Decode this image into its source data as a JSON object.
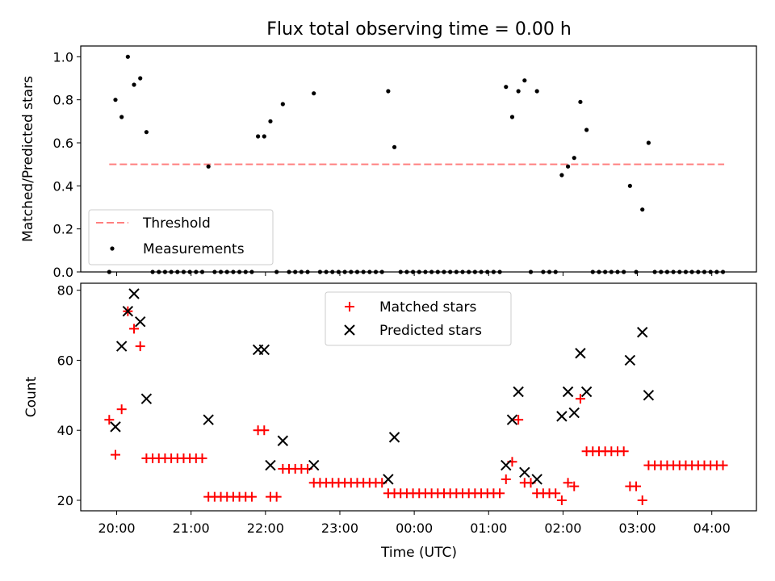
{
  "title": "Flux total observing time = 0.00 h",
  "colors": {
    "threshold": "#ff7f7f",
    "measurement": "#000000",
    "matched": "#ff0000",
    "predicted": "#000000"
  },
  "chart_data": [
    {
      "type": "scatter",
      "ylabel": "Matched/Predicted stars",
      "ylim": [
        0,
        1.05
      ],
      "xlim": [
        "19:31",
        "04:36"
      ],
      "yticks": [
        "0.0",
        "0.2",
        "0.4",
        "0.6",
        "0.8",
        "1.0"
      ],
      "grid": false,
      "legend": {
        "placement": "lower-left",
        "entries": [
          "Threshold",
          "Measurements"
        ]
      },
      "threshold": {
        "name": "Threshold",
        "y": 0.5,
        "x": [
          "19:54",
          "04:10"
        ]
      },
      "series": [
        {
          "name": "Measurements",
          "points": [
            [
              "19:54",
              0.0
            ],
            [
              "19:59",
              0.8
            ],
            [
              "20:04",
              0.72
            ],
            [
              "20:09",
              1.0
            ],
            [
              "20:14",
              0.87
            ],
            [
              "20:19",
              0.9
            ],
            [
              "20:24",
              0.65
            ],
            [
              "20:29",
              0.0
            ],
            [
              "20:34",
              0.0
            ],
            [
              "20:39",
              0.0
            ],
            [
              "20:44",
              0.0
            ],
            [
              "20:49",
              0.0
            ],
            [
              "20:54",
              0.0
            ],
            [
              "20:59",
              0.0
            ],
            [
              "21:04",
              0.0
            ],
            [
              "21:09",
              0.0
            ],
            [
              "21:14",
              0.49
            ],
            [
              "21:19",
              0.0
            ],
            [
              "21:24",
              0.0
            ],
            [
              "21:29",
              0.0
            ],
            [
              "21:34",
              0.0
            ],
            [
              "21:39",
              0.0
            ],
            [
              "21:44",
              0.0
            ],
            [
              "21:49",
              0.0
            ],
            [
              "21:54",
              0.63
            ],
            [
              "21:59",
              0.63
            ],
            [
              "22:04",
              0.7
            ],
            [
              "22:09",
              0.0
            ],
            [
              "22:14",
              0.78
            ],
            [
              "22:19",
              0.0
            ],
            [
              "22:24",
              0.0
            ],
            [
              "22:29",
              0.0
            ],
            [
              "22:34",
              0.0
            ],
            [
              "22:39",
              0.83
            ],
            [
              "22:44",
              0.0
            ],
            [
              "22:49",
              0.0
            ],
            [
              "22:54",
              0.0
            ],
            [
              "22:59",
              0.0
            ],
            [
              "23:04",
              0.0
            ],
            [
              "23:09",
              0.0
            ],
            [
              "23:14",
              0.0
            ],
            [
              "23:19",
              0.0
            ],
            [
              "23:24",
              0.0
            ],
            [
              "23:29",
              0.0
            ],
            [
              "23:34",
              0.0
            ],
            [
              "23:39",
              0.84
            ],
            [
              "23:44",
              0.58
            ],
            [
              "23:49",
              0.0
            ],
            [
              "23:54",
              0.0
            ],
            [
              "23:59",
              0.0
            ],
            [
              "00:04",
              0.0
            ],
            [
              "00:09",
              0.0
            ],
            [
              "00:14",
              0.0
            ],
            [
              "00:19",
              0.0
            ],
            [
              "00:24",
              0.0
            ],
            [
              "00:29",
              0.0
            ],
            [
              "00:34",
              0.0
            ],
            [
              "00:39",
              0.0
            ],
            [
              "00:44",
              0.0
            ],
            [
              "00:49",
              0.0
            ],
            [
              "00:54",
              0.0
            ],
            [
              "00:59",
              0.0
            ],
            [
              "01:04",
              0.0
            ],
            [
              "01:09",
              0.0
            ],
            [
              "01:14",
              0.86
            ],
            [
              "01:19",
              0.72
            ],
            [
              "01:24",
              0.84
            ],
            [
              "01:29",
              0.89
            ],
            [
              "01:34",
              0.0
            ],
            [
              "01:39",
              0.84
            ],
            [
              "01:44",
              0.0
            ],
            [
              "01:49",
              0.0
            ],
            [
              "01:54",
              0.0
            ],
            [
              "01:59",
              0.45
            ],
            [
              "02:04",
              0.49
            ],
            [
              "02:09",
              0.53
            ],
            [
              "02:14",
              0.79
            ],
            [
              "02:19",
              0.66
            ],
            [
              "02:24",
              0.0
            ],
            [
              "02:29",
              0.0
            ],
            [
              "02:34",
              0.0
            ],
            [
              "02:39",
              0.0
            ],
            [
              "02:44",
              0.0
            ],
            [
              "02:49",
              0.0
            ],
            [
              "02:54",
              0.4
            ],
            [
              "02:59",
              0.0
            ],
            [
              "03:04",
              0.29
            ],
            [
              "03:09",
              0.6
            ],
            [
              "03:14",
              0.0
            ],
            [
              "03:19",
              0.0
            ],
            [
              "03:24",
              0.0
            ],
            [
              "03:29",
              0.0
            ],
            [
              "03:34",
              0.0
            ],
            [
              "03:39",
              0.0
            ],
            [
              "03:44",
              0.0
            ],
            [
              "03:49",
              0.0
            ],
            [
              "03:54",
              0.0
            ],
            [
              "03:59",
              0.0
            ],
            [
              "04:04",
              0.0
            ],
            [
              "04:09",
              0.0
            ]
          ]
        }
      ]
    },
    {
      "type": "scatter",
      "xlabel": "Time (UTC)",
      "ylabel": "Count",
      "ylim": [
        17,
        82
      ],
      "xlim": [
        "19:31",
        "04:36"
      ],
      "yticks": [
        "20",
        "40",
        "60",
        "80"
      ],
      "xticks": [
        "20:00",
        "21:00",
        "22:00",
        "23:00",
        "00:00",
        "01:00",
        "02:00",
        "03:00",
        "04:00"
      ],
      "grid": false,
      "legend": {
        "placement": "top-center",
        "entries": [
          "Matched stars",
          "Predicted stars"
        ]
      },
      "series": [
        {
          "name": "Matched stars",
          "points": [
            [
              "19:54",
              43
            ],
            [
              "19:59",
              33
            ],
            [
              "20:04",
              46
            ],
            [
              "20:09",
              74
            ],
            [
              "20:14",
              69
            ],
            [
              "20:19",
              64
            ],
            [
              "20:24",
              32
            ],
            [
              "20:29",
              32
            ],
            [
              "20:34",
              32
            ],
            [
              "20:39",
              32
            ],
            [
              "20:44",
              32
            ],
            [
              "20:49",
              32
            ],
            [
              "20:54",
              32
            ],
            [
              "20:59",
              32
            ],
            [
              "21:04",
              32
            ],
            [
              "21:09",
              32
            ],
            [
              "21:14",
              21
            ],
            [
              "21:19",
              21
            ],
            [
              "21:24",
              21
            ],
            [
              "21:29",
              21
            ],
            [
              "21:34",
              21
            ],
            [
              "21:39",
              21
            ],
            [
              "21:44",
              21
            ],
            [
              "21:49",
              21
            ],
            [
              "21:54",
              40
            ],
            [
              "21:59",
              40
            ],
            [
              "22:04",
              21
            ],
            [
              "22:09",
              21
            ],
            [
              "22:14",
              29
            ],
            [
              "22:19",
              29
            ],
            [
              "22:24",
              29
            ],
            [
              "22:29",
              29
            ],
            [
              "22:34",
              29
            ],
            [
              "22:39",
              25
            ],
            [
              "22:44",
              25
            ],
            [
              "22:49",
              25
            ],
            [
              "22:54",
              25
            ],
            [
              "22:59",
              25
            ],
            [
              "23:04",
              25
            ],
            [
              "23:09",
              25
            ],
            [
              "23:14",
              25
            ],
            [
              "23:19",
              25
            ],
            [
              "23:24",
              25
            ],
            [
              "23:29",
              25
            ],
            [
              "23:34",
              25
            ],
            [
              "23:39",
              22
            ],
            [
              "23:44",
              22
            ],
            [
              "23:49",
              22
            ],
            [
              "23:54",
              22
            ],
            [
              "23:59",
              22
            ],
            [
              "00:04",
              22
            ],
            [
              "00:09",
              22
            ],
            [
              "00:14",
              22
            ],
            [
              "00:19",
              22
            ],
            [
              "00:24",
              22
            ],
            [
              "00:29",
              22
            ],
            [
              "00:34",
              22
            ],
            [
              "00:39",
              22
            ],
            [
              "00:44",
              22
            ],
            [
              "00:49",
              22
            ],
            [
              "00:54",
              22
            ],
            [
              "00:59",
              22
            ],
            [
              "01:04",
              22
            ],
            [
              "01:09",
              22
            ],
            [
              "01:14",
              26
            ],
            [
              "01:19",
              31
            ],
            [
              "01:24",
              43
            ],
            [
              "01:29",
              25
            ],
            [
              "01:34",
              25
            ],
            [
              "01:39",
              22
            ],
            [
              "01:44",
              22
            ],
            [
              "01:49",
              22
            ],
            [
              "01:54",
              22
            ],
            [
              "01:59",
              20
            ],
            [
              "02:04",
              25
            ],
            [
              "02:09",
              24
            ],
            [
              "02:14",
              49
            ],
            [
              "02:19",
              34
            ],
            [
              "02:24",
              34
            ],
            [
              "02:29",
              34
            ],
            [
              "02:34",
              34
            ],
            [
              "02:39",
              34
            ],
            [
              "02:44",
              34
            ],
            [
              "02:49",
              34
            ],
            [
              "02:54",
              24
            ],
            [
              "02:59",
              24
            ],
            [
              "03:04",
              20
            ],
            [
              "03:09",
              30
            ],
            [
              "03:14",
              30
            ],
            [
              "03:19",
              30
            ],
            [
              "03:24",
              30
            ],
            [
              "03:29",
              30
            ],
            [
              "03:34",
              30
            ],
            [
              "03:39",
              30
            ],
            [
              "03:44",
              30
            ],
            [
              "03:49",
              30
            ],
            [
              "03:54",
              30
            ],
            [
              "03:59",
              30
            ],
            [
              "04:04",
              30
            ],
            [
              "04:09",
              30
            ]
          ]
        },
        {
          "name": "Predicted stars",
          "points": [
            [
              "19:59",
              41
            ],
            [
              "20:04",
              64
            ],
            [
              "20:09",
              74
            ],
            [
              "20:14",
              79
            ],
            [
              "20:19",
              71
            ],
            [
              "20:24",
              49
            ],
            [
              "21:14",
              43
            ],
            [
              "21:54",
              63
            ],
            [
              "21:59",
              63
            ],
            [
              "22:04",
              30
            ],
            [
              "22:14",
              37
            ],
            [
              "22:39",
              30
            ],
            [
              "23:39",
              26
            ],
            [
              "23:44",
              38
            ],
            [
              "01:14",
              30
            ],
            [
              "01:19",
              43
            ],
            [
              "01:24",
              51
            ],
            [
              "01:29",
              28
            ],
            [
              "01:39",
              26
            ],
            [
              "01:59",
              44
            ],
            [
              "02:04",
              51
            ],
            [
              "02:09",
              45
            ],
            [
              "02:14",
              62
            ],
            [
              "02:19",
              51
            ],
            [
              "02:54",
              60
            ],
            [
              "03:04",
              68
            ],
            [
              "03:09",
              50
            ]
          ]
        }
      ]
    }
  ]
}
